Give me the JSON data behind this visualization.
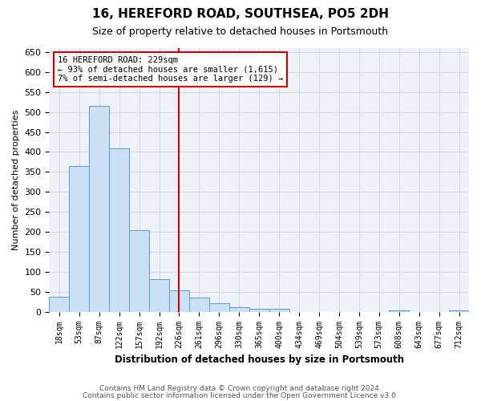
{
  "title1": "16, HEREFORD ROAD, SOUTHSEA, PO5 2DH",
  "title2": "Size of property relative to detached houses in Portsmouth",
  "xlabel": "Distribution of detached houses by size in Portsmouth",
  "ylabel": "Number of detached properties",
  "bar_labels": [
    "18sqm",
    "53sqm",
    "87sqm",
    "122sqm",
    "157sqm",
    "192sqm",
    "226sqm",
    "261sqm",
    "296sqm",
    "330sqm",
    "365sqm",
    "400sqm",
    "434sqm",
    "469sqm",
    "504sqm",
    "539sqm",
    "573sqm",
    "608sqm",
    "643sqm",
    "677sqm",
    "712sqm"
  ],
  "bar_values": [
    37,
    365,
    515,
    410,
    205,
    82,
    54,
    35,
    22,
    11,
    8,
    8,
    0,
    0,
    0,
    0,
    0,
    4,
    0,
    0,
    4
  ],
  "bar_color": "#cce0f5",
  "bar_edge_color": "#5b9bd5",
  "vline_x": 6.0,
  "vline_color": "#c00000",
  "annotation_text": "16 HEREFORD ROAD: 229sqm\n← 93% of detached houses are smaller (1,615)\n7% of semi-detached houses are larger (129) →",
  "annotation_box_color": "#c00000",
  "ylim": [
    0,
    660
  ],
  "yticks": [
    0,
    50,
    100,
    150,
    200,
    250,
    300,
    350,
    400,
    450,
    500,
    550,
    600,
    650
  ],
  "grid_color": "#d0d8e8",
  "bg_color": "#eef2f8",
  "footer1": "Contains HM Land Registry data © Crown copyright and database right 2024.",
  "footer2": "Contains public sector information licensed under the Open Government Licence v3.0."
}
